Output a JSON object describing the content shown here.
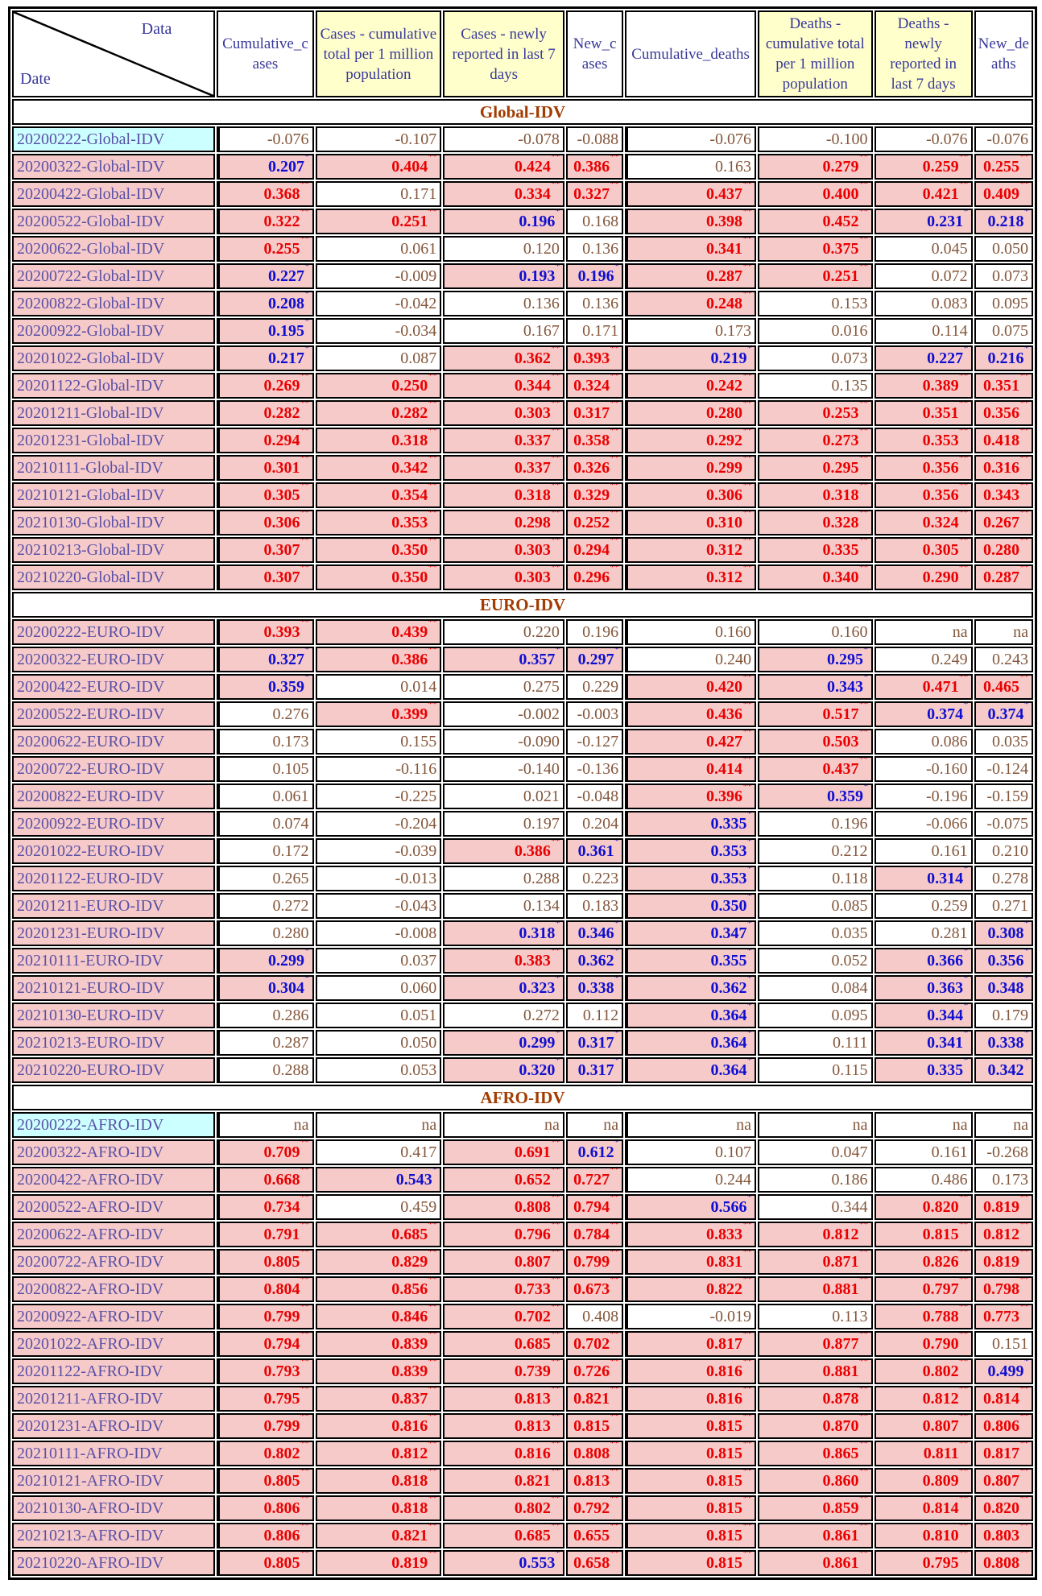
{
  "table": {
    "corner": {
      "top_label": "Data",
      "bottom_label": "Date"
    },
    "columns": [
      {
        "label": "Cumulative_cases",
        "highlight": false
      },
      {
        "label": "Cases - cumulative total per 1 million population",
        "highlight": true
      },
      {
        "label": "Cases - newly reported in last 7 days",
        "highlight": true
      },
      {
        "label": "New_cases",
        "highlight": false
      },
      {
        "label": "Cumulative_deaths",
        "highlight": false
      },
      {
        "label": "Deaths - cumulative total per 1 million population",
        "highlight": true
      },
      {
        "label": "Deaths - newly reported in last 7 days",
        "highlight": true
      },
      {
        "label": "New_deaths",
        "highlight": false
      }
    ],
    "sections": [
      {
        "title": "Global-IDV",
        "rows": [
          {
            "label": "20200222-Global-IDV",
            "label_bg": "cyan",
            "values": [
              "-0.076",
              "-0.107",
              "-0.078",
              "-0.088",
              "-0.076",
              "-0.100",
              "-0.076",
              "-0.076"
            ]
          },
          {
            "label": "20200322-Global-IDV",
            "label_bg": "pink",
            "values": [
              "0.207*",
              "0.404**",
              "0.424**",
              "0.386**",
              "0.163",
              "0.279**",
              "0.259**",
              "0.255**"
            ]
          },
          {
            "label": "20200422-Global-IDV",
            "label_bg": "pink",
            "values": [
              "0.368**",
              "0.171",
              "0.334**",
              "0.327**",
              "0.437**",
              "0.400**",
              "0.421**",
              "0.409**"
            ]
          },
          {
            "label": "20200522-Global-IDV",
            "label_bg": "pink",
            "values": [
              "0.322**",
              "0.251**",
              "0.196*",
              "0.168",
              "0.398**",
              "0.452**",
              "0.231*",
              "0.218*"
            ]
          },
          {
            "label": "20200622-Global-IDV",
            "label_bg": "pink",
            "values": [
              "0.255**",
              "0.061",
              "0.120",
              "0.136",
              "0.341**",
              "0.375**",
              "0.045",
              "0.050"
            ]
          },
          {
            "label": "20200722-Global-IDV",
            "label_bg": "pink",
            "values": [
              "0.227*",
              "-0.009",
              "0.193*",
              "0.196*",
              "0.287**",
              "0.251**",
              "0.072",
              "0.073"
            ]
          },
          {
            "label": "20200822-Global-IDV",
            "label_bg": "pink",
            "values": [
              "0.208*",
              "-0.042",
              "0.136",
              "0.136",
              "0.248**",
              "0.153",
              "0.083",
              "0.095"
            ]
          },
          {
            "label": "20200922-Global-IDV",
            "label_bg": "pink",
            "values": [
              "0.195*",
              "-0.034",
              "0.167",
              "0.171",
              "0.173",
              "0.016",
              "0.114",
              "0.075"
            ]
          },
          {
            "label": "20201022-Global-IDV",
            "label_bg": "pink",
            "values": [
              "0.217*",
              "0.087",
              "0.362**",
              "0.393**",
              "0.219*",
              "0.073",
              "0.227*",
              "0.216*"
            ]
          },
          {
            "label": "20201122-Global-IDV",
            "label_bg": "pink",
            "values": [
              "0.269**",
              "0.250**",
              "0.344**",
              "0.324**",
              "0.242**",
              "0.135",
              "0.389**",
              "0.351**"
            ]
          },
          {
            "label": "20201211-Global-IDV",
            "label_bg": "pink",
            "values": [
              "0.282**",
              "0.282**",
              "0.303**",
              "0.317**",
              "0.280**",
              "0.253**",
              "0.351**",
              "0.356**"
            ]
          },
          {
            "label": "20201231-Global-IDV",
            "label_bg": "pink",
            "values": [
              "0.294**",
              "0.318**",
              "0.337**",
              "0.358**",
              "0.292**",
              "0.273**",
              "0.353**",
              "0.418**"
            ]
          },
          {
            "label": "20210111-Global-IDV",
            "label_bg": "pink",
            "values": [
              "0.301**",
              "0.342**",
              "0.337**",
              "0.326**",
              "0.299**",
              "0.295**",
              "0.356**",
              "0.316**"
            ]
          },
          {
            "label": "20210121-Global-IDV",
            "label_bg": "pink",
            "values": [
              "0.305**",
              "0.354**",
              "0.318**",
              "0.329**",
              "0.306**",
              "0.318**",
              "0.356**",
              "0.343**"
            ]
          },
          {
            "label": "20210130-Global-IDV",
            "label_bg": "pink",
            "values": [
              "0.306**",
              "0.353**",
              "0.298**",
              "0.252**",
              "0.310**",
              "0.328**",
              "0.324**",
              "0.267**"
            ]
          },
          {
            "label": "20210213-Global-IDV",
            "label_bg": "pink",
            "values": [
              "0.307**",
              "0.350**",
              "0.303**",
              "0.294**",
              "0.312**",
              "0.335**",
              "0.305**",
              "0.280**"
            ]
          },
          {
            "label": "20210220-Global-IDV",
            "label_bg": "pink",
            "values": [
              "0.307**",
              "0.350**",
              "0.303**",
              "0.296**",
              "0.312**",
              "0.340**",
              "0.290**",
              "0.287**"
            ]
          }
        ]
      },
      {
        "title": "EURO-IDV",
        "rows": [
          {
            "label": "20200222-EURO-IDV",
            "label_bg": "pink",
            "values": [
              "0.393**",
              "0.439**",
              "0.220",
              "0.196",
              "0.160",
              "0.160",
              "na",
              "na"
            ]
          },
          {
            "label": "20200322-EURO-IDV",
            "label_bg": "pink",
            "values": [
              "0.327*",
              "0.386**",
              "0.357*",
              "0.297*",
              "0.240",
              "0.295*",
              "0.249",
              "0.243"
            ]
          },
          {
            "label": "20200422-EURO-IDV",
            "label_bg": "pink",
            "values": [
              "0.359*",
              "0.014",
              "0.275",
              "0.229",
              "0.420**",
              "0.343*",
              "0.471**",
              "0.465**"
            ]
          },
          {
            "label": "20200522-EURO-IDV",
            "label_bg": "pink",
            "values": [
              "0.276",
              "0.399**",
              "-0.002",
              "-0.003",
              "0.436**",
              "0.517**",
              "0.374*",
              "0.374*"
            ]
          },
          {
            "label": "20200622-EURO-IDV",
            "label_bg": "pink",
            "values": [
              "0.173",
              "0.155",
              "-0.090",
              "-0.127",
              "0.427**",
              "0.503**",
              "0.086",
              "0.035"
            ]
          },
          {
            "label": "20200722-EURO-IDV",
            "label_bg": "pink",
            "values": [
              "0.105",
              "-0.116",
              "-0.140",
              "-0.136",
              "0.414**",
              "0.437**",
              "-0.160",
              "-0.124"
            ]
          },
          {
            "label": "20200822-EURO-IDV",
            "label_bg": "pink",
            "values": [
              "0.061",
              "-0.225",
              "0.021",
              "-0.048",
              "0.396**",
              "0.359*",
              "-0.196",
              "-0.159"
            ]
          },
          {
            "label": "20200922-EURO-IDV",
            "label_bg": "pink",
            "values": [
              "0.074",
              "-0.204",
              "0.197",
              "0.204",
              "0.335*",
              "0.196",
              "-0.066",
              "-0.075"
            ]
          },
          {
            "label": "20201022-EURO-IDV",
            "label_bg": "pink",
            "values": [
              "0.172",
              "-0.039",
              "0.386**",
              "0.361*",
              "0.353*",
              "0.212",
              "0.161",
              "0.210"
            ]
          },
          {
            "label": "20201122-EURO-IDV",
            "label_bg": "pink",
            "values": [
              "0.265",
              "-0.013",
              "0.288",
              "0.223",
              "0.353*",
              "0.118",
              "0.314*",
              "0.278"
            ]
          },
          {
            "label": "20201211-EURO-IDV",
            "label_bg": "pink",
            "values": [
              "0.272",
              "-0.043",
              "0.134",
              "0.183",
              "0.350*",
              "0.085",
              "0.259",
              "0.271"
            ]
          },
          {
            "label": "20201231-EURO-IDV",
            "label_bg": "pink",
            "values": [
              "0.280",
              "-0.008",
              "0.318*",
              "0.346*",
              "0.347*",
              "0.035",
              "0.281",
              "0.308*"
            ]
          },
          {
            "label": "20210111-EURO-IDV",
            "label_bg": "pink",
            "values": [
              "0.299*",
              "0.037",
              "0.383**",
              "0.362*",
              "0.355*",
              "0.052",
              "0.366*",
              "0.356*"
            ]
          },
          {
            "label": "20210121-EURO-IDV",
            "label_bg": "pink",
            "values": [
              "0.304*",
              "0.060",
              "0.323*",
              "0.338*",
              "0.362*",
              "0.084",
              "0.363*",
              "0.348*"
            ]
          },
          {
            "label": "20210130-EURO-IDV",
            "label_bg": "pink",
            "values": [
              "0.286",
              "0.051",
              "0.272",
              "0.112",
              "0.364*",
              "0.095",
              "0.344*",
              "0.179"
            ]
          },
          {
            "label": "20210213-EURO-IDV",
            "label_bg": "pink",
            "values": [
              "0.287",
              "0.050",
              "0.299*",
              "0.317*",
              "0.364*",
              "0.111",
              "0.341*",
              "0.338*"
            ]
          },
          {
            "label": "20210220-EURO-IDV",
            "label_bg": "pink",
            "values": [
              "0.288",
              "0.053",
              "0.320*",
              "0.317*",
              "0.364*",
              "0.115",
              "0.335*",
              "0.342*"
            ]
          }
        ]
      },
      {
        "title": "AFRO-IDV",
        "rows": [
          {
            "label": "20200222-AFRO-IDV",
            "label_bg": "cyan",
            "values": [
              "na",
              "na",
              "na",
              "na",
              "na",
              "na",
              "na",
              "na"
            ]
          },
          {
            "label": "20200322-AFRO-IDV",
            "label_bg": "pink",
            "values": [
              "0.709**",
              "0.417",
              "0.691**",
              "0.612*",
              "0.107",
              "0.047",
              "0.161",
              "-0.268"
            ]
          },
          {
            "label": "20200422-AFRO-IDV",
            "label_bg": "pink",
            "values": [
              "0.668**",
              "0.543*",
              "0.652**",
              "0.727**",
              "0.244",
              "0.186",
              "0.486",
              "0.173"
            ]
          },
          {
            "label": "20200522-AFRO-IDV",
            "label_bg": "pink",
            "values": [
              "0.734**",
              "0.459",
              "0.808**",
              "0.794**",
              "0.566*",
              "0.344",
              "0.820**",
              "0.819**"
            ]
          },
          {
            "label": "20200622-AFRO-IDV",
            "label_bg": "pink",
            "values": [
              "0.791**",
              "0.685**",
              "0.796**",
              "0.784**",
              "0.833**",
              "0.812**",
              "0.815**",
              "0.812**"
            ]
          },
          {
            "label": "20200722-AFRO-IDV",
            "label_bg": "pink",
            "values": [
              "0.805**",
              "0.829**",
              "0.807**",
              "0.799**",
              "0.831**",
              "0.871**",
              "0.826**",
              "0.819**"
            ]
          },
          {
            "label": "20200822-AFRO-IDV",
            "label_bg": "pink",
            "values": [
              "0.804**",
              "0.856**",
              "0.733**",
              "0.673**",
              "0.822**",
              "0.881**",
              "0.797**",
              "0.798**"
            ]
          },
          {
            "label": "20200922-AFRO-IDV",
            "label_bg": "pink",
            "values": [
              "0.799**",
              "0.846**",
              "0.702**",
              "0.408",
              "-0.019",
              "0.113",
              "0.788**",
              "0.773**"
            ]
          },
          {
            "label": "20201022-AFRO-IDV",
            "label_bg": "pink",
            "values": [
              "0.794**",
              "0.839**",
              "0.685**",
              "0.702**",
              "0.817**",
              "0.877**",
              "0.790**",
              "0.151"
            ]
          },
          {
            "label": "20201122-AFRO-IDV",
            "label_bg": "pink",
            "values": [
              "0.793**",
              "0.839**",
              "0.739**",
              "0.726**",
              "0.816**",
              "0.881**",
              "0.802**",
              "0.499*"
            ]
          },
          {
            "label": "20201211-AFRO-IDV",
            "label_bg": "pink",
            "values": [
              "0.795**",
              "0.837**",
              "0.813**",
              "0.821**",
              "0.816**",
              "0.878**",
              "0.812**",
              "0.814**"
            ]
          },
          {
            "label": "20201231-AFRO-IDV",
            "label_bg": "pink",
            "values": [
              "0.799**",
              "0.816**",
              "0.813**",
              "0.815**",
              "0.815**",
              "0.870**",
              "0.807**",
              "0.806**"
            ]
          },
          {
            "label": "20210111-AFRO-IDV",
            "label_bg": "pink",
            "values": [
              "0.802**",
              "0.812**",
              "0.816**",
              "0.808**",
              "0.815**",
              "0.865**",
              "0.811**",
              "0.817**"
            ]
          },
          {
            "label": "20210121-AFRO-IDV",
            "label_bg": "pink",
            "values": [
              "0.805**",
              "0.818**",
              "0.821**",
              "0.813**",
              "0.815**",
              "0.860**",
              "0.809**",
              "0.807**"
            ]
          },
          {
            "label": "20210130-AFRO-IDV",
            "label_bg": "pink",
            "values": [
              "0.806**",
              "0.818**",
              "0.802**",
              "0.792**",
              "0.815**",
              "0.859**",
              "0.814**",
              "0.820**"
            ]
          },
          {
            "label": "20210213-AFRO-IDV",
            "label_bg": "pink",
            "values": [
              "0.806**",
              "0.821**",
              "0.685**",
              "0.655**",
              "0.815**",
              "0.861**",
              "0.810**",
              "0.803**"
            ]
          },
          {
            "label": "20210220-AFRO-IDV",
            "label_bg": "pink",
            "values": [
              "0.805**",
              "0.819**",
              "0.553*",
              "0.658**",
              "0.815**",
              "0.861**",
              "0.795**",
              "0.808**"
            ]
          }
        ]
      }
    ]
  },
  "colors": {
    "pink_bg": "#f7caca",
    "yellow_header_bg": "#ffffcc",
    "cyan_label_bg": "#ccffff",
    "significant_2star_red": "#ea0000",
    "significant_1star_blue": "#0f0fd0",
    "plain_value_brown": "#84573c",
    "row_label_purple": "#5950a5",
    "column_header_navy": "#38389a",
    "section_title_maroon": "#a23c00"
  }
}
